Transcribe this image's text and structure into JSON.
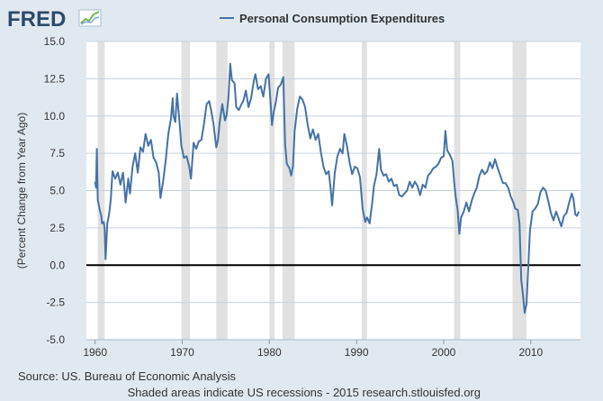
{
  "header": {
    "logo_text": "FRED",
    "logo_icon": "line-chart-icon"
  },
  "legend": {
    "series_name": "Personal Consumption Expenditures",
    "color": "#4572a7"
  },
  "footer": {
    "source": "Source: US. Bureau of Economic Analysis",
    "note": "Shaded areas indicate US recessions - 2015 research.stlouisfed.org"
  },
  "colors": {
    "background": "#e1e9f0",
    "plot_background": "#ffffff",
    "series": "#4572a7",
    "recession": "#e1e1e1",
    "grid": "#c8d2dc",
    "zero_line": "#000000",
    "text": "#333333"
  },
  "chart_data": {
    "type": "line",
    "title": "",
    "xlabel": "",
    "ylabel": "(Percent Change from Year Ago)",
    "xlim": [
      1959.0,
      2015.7
    ],
    "ylim": [
      -5.0,
      15.0
    ],
    "grid": true,
    "legend_position": "top",
    "x_ticks": [
      {
        "value": 1960,
        "label": "1960"
      },
      {
        "value": 1970,
        "label": "1970"
      },
      {
        "value": 1980,
        "label": "1980"
      },
      {
        "value": 1990,
        "label": "1990"
      },
      {
        "value": 2000,
        "label": "2000"
      },
      {
        "value": 2010,
        "label": "2010"
      }
    ],
    "y_ticks": [
      {
        "value": -5.0,
        "label": "-5.0"
      },
      {
        "value": -2.5,
        "label": "-2.5"
      },
      {
        "value": 0.0,
        "label": "0.0"
      },
      {
        "value": 2.5,
        "label": "2.5"
      },
      {
        "value": 5.0,
        "label": "5.0"
      },
      {
        "value": 7.5,
        "label": "7.5"
      },
      {
        "value": 10.0,
        "label": "10.0"
      },
      {
        "value": 12.5,
        "label": "12.5"
      },
      {
        "value": 15.0,
        "label": "15.0"
      }
    ],
    "recessions": [
      [
        1960.3,
        1961.1
      ],
      [
        1969.9,
        1970.9
      ],
      [
        1973.9,
        1975.2
      ],
      [
        1980.0,
        1980.6
      ],
      [
        1981.5,
        1982.9
      ],
      [
        1990.6,
        1991.2
      ],
      [
        2001.2,
        2001.9
      ],
      [
        2007.9,
        2009.5
      ]
    ],
    "series": [
      {
        "name": "Personal Consumption Expenditures",
        "color": "#4572a7",
        "points": [
          [
            1960.0,
            5.6
          ],
          [
            1960.1,
            5.2
          ],
          [
            1960.2,
            7.8
          ],
          [
            1960.3,
            4.4
          ],
          [
            1960.5,
            3.8
          ],
          [
            1960.7,
            3.3
          ],
          [
            1960.8,
            2.8
          ],
          [
            1961.0,
            2.9
          ],
          [
            1961.1,
            2.4
          ],
          [
            1961.2,
            0.4
          ],
          [
            1961.4,
            2.8
          ],
          [
            1961.6,
            3.4
          ],
          [
            1961.8,
            4.4
          ],
          [
            1962.0,
            6.3
          ],
          [
            1962.3,
            5.8
          ],
          [
            1962.6,
            6.2
          ],
          [
            1962.9,
            5.4
          ],
          [
            1963.2,
            6.2
          ],
          [
            1963.5,
            4.2
          ],
          [
            1963.8,
            5.8
          ],
          [
            1964.0,
            4.8
          ],
          [
            1964.3,
            6.6
          ],
          [
            1964.6,
            7.5
          ],
          [
            1964.9,
            6.2
          ],
          [
            1965.2,
            7.9
          ],
          [
            1965.5,
            7.6
          ],
          [
            1965.8,
            8.8
          ],
          [
            1966.1,
            8.0
          ],
          [
            1966.4,
            8.4
          ],
          [
            1966.7,
            7.2
          ],
          [
            1967.0,
            6.9
          ],
          [
            1967.3,
            6.2
          ],
          [
            1967.5,
            4.5
          ],
          [
            1967.8,
            5.6
          ],
          [
            1968.1,
            7.0
          ],
          [
            1968.4,
            8.8
          ],
          [
            1968.7,
            9.8
          ],
          [
            1968.9,
            11.2
          ],
          [
            1969.0,
            10.0
          ],
          [
            1969.2,
            9.6
          ],
          [
            1969.4,
            11.5
          ],
          [
            1969.7,
            9.5
          ],
          [
            1969.9,
            8.0
          ],
          [
            1970.2,
            7.2
          ],
          [
            1970.5,
            7.3
          ],
          [
            1970.8,
            6.6
          ],
          [
            1971.0,
            5.8
          ],
          [
            1971.3,
            8.2
          ],
          [
            1971.6,
            7.8
          ],
          [
            1971.9,
            8.3
          ],
          [
            1972.2,
            8.4
          ],
          [
            1972.5,
            9.5
          ],
          [
            1972.8,
            10.8
          ],
          [
            1973.1,
            11.0
          ],
          [
            1973.3,
            10.4
          ],
          [
            1973.6,
            9.4
          ],
          [
            1973.9,
            7.9
          ],
          [
            1974.1,
            8.4
          ],
          [
            1974.3,
            9.6
          ],
          [
            1974.6,
            10.8
          ],
          [
            1974.9,
            9.7
          ],
          [
            1975.1,
            10.1
          ],
          [
            1975.3,
            11.2
          ],
          [
            1975.5,
            13.5
          ],
          [
            1975.7,
            12.4
          ],
          [
            1976.0,
            12.2
          ],
          [
            1976.2,
            10.6
          ],
          [
            1976.5,
            10.4
          ],
          [
            1976.8,
            10.8
          ],
          [
            1977.0,
            11.0
          ],
          [
            1977.3,
            11.7
          ],
          [
            1977.6,
            10.6
          ],
          [
            1977.9,
            11.2
          ],
          [
            1978.2,
            12.3
          ],
          [
            1978.4,
            12.8
          ],
          [
            1978.7,
            11.8
          ],
          [
            1979.0,
            12.0
          ],
          [
            1979.3,
            11.3
          ],
          [
            1979.6,
            12.5
          ],
          [
            1979.9,
            12.8
          ],
          [
            1980.1,
            11.2
          ],
          [
            1980.3,
            9.4
          ],
          [
            1980.5,
            10.3
          ],
          [
            1980.7,
            10.8
          ],
          [
            1981.0,
            11.9
          ],
          [
            1981.3,
            12.1
          ],
          [
            1981.6,
            12.6
          ],
          [
            1981.8,
            8.1
          ],
          [
            1982.0,
            6.8
          ],
          [
            1982.3,
            6.5
          ],
          [
            1982.5,
            6.0
          ],
          [
            1982.7,
            6.6
          ],
          [
            1982.9,
            9.0
          ],
          [
            1983.2,
            10.5
          ],
          [
            1983.5,
            11.3
          ],
          [
            1983.8,
            11.1
          ],
          [
            1984.1,
            10.6
          ],
          [
            1984.4,
            9.4
          ],
          [
            1984.7,
            8.5
          ],
          [
            1985.0,
            9.1
          ],
          [
            1985.3,
            8.4
          ],
          [
            1985.6,
            8.8
          ],
          [
            1985.9,
            7.6
          ],
          [
            1986.2,
            6.6
          ],
          [
            1986.5,
            6.1
          ],
          [
            1986.8,
            6.3
          ],
          [
            1987.0,
            5.3
          ],
          [
            1987.2,
            4.0
          ],
          [
            1987.5,
            6.2
          ],
          [
            1987.8,
            7.3
          ],
          [
            1988.1,
            7.8
          ],
          [
            1988.4,
            7.5
          ],
          [
            1988.6,
            8.8
          ],
          [
            1988.9,
            8.0
          ],
          [
            1989.2,
            6.9
          ],
          [
            1989.5,
            6.1
          ],
          [
            1989.8,
            6.6
          ],
          [
            1990.1,
            6.5
          ],
          [
            1990.4,
            5.9
          ],
          [
            1990.7,
            3.8
          ],
          [
            1991.0,
            2.9
          ],
          [
            1991.2,
            3.2
          ],
          [
            1991.5,
            2.8
          ],
          [
            1991.8,
            4.2
          ],
          [
            1992.0,
            5.3
          ],
          [
            1992.3,
            6.1
          ],
          [
            1992.6,
            7.8
          ],
          [
            1992.8,
            6.4
          ],
          [
            1993.1,
            6.0
          ],
          [
            1993.4,
            6.1
          ],
          [
            1993.7,
            5.6
          ],
          [
            1994.0,
            5.8
          ],
          [
            1994.3,
            5.3
          ],
          [
            1994.6,
            5.4
          ],
          [
            1994.9,
            4.7
          ],
          [
            1995.2,
            4.6
          ],
          [
            1995.5,
            4.8
          ],
          [
            1995.8,
            5.0
          ],
          [
            1996.1,
            5.6
          ],
          [
            1996.4,
            5.2
          ],
          [
            1996.7,
            5.6
          ],
          [
            1997.0,
            5.3
          ],
          [
            1997.3,
            4.7
          ],
          [
            1997.6,
            5.4
          ],
          [
            1997.9,
            5.2
          ],
          [
            1998.2,
            6.0
          ],
          [
            1998.5,
            6.2
          ],
          [
            1998.8,
            6.5
          ],
          [
            1999.1,
            6.6
          ],
          [
            1999.4,
            6.8
          ],
          [
            1999.7,
            7.2
          ],
          [
            2000.0,
            7.3
          ],
          [
            2000.2,
            9.0
          ],
          [
            2000.4,
            7.7
          ],
          [
            2000.7,
            7.4
          ],
          [
            2001.0,
            7.0
          ],
          [
            2001.2,
            5.6
          ],
          [
            2001.4,
            4.5
          ],
          [
            2001.6,
            3.7
          ],
          [
            2001.8,
            2.1
          ],
          [
            2002.0,
            3.2
          ],
          [
            2002.3,
            3.6
          ],
          [
            2002.6,
            4.2
          ],
          [
            2002.9,
            3.6
          ],
          [
            2003.2,
            4.3
          ],
          [
            2003.5,
            4.8
          ],
          [
            2003.8,
            5.2
          ],
          [
            2004.1,
            6.0
          ],
          [
            2004.4,
            6.4
          ],
          [
            2004.7,
            6.1
          ],
          [
            2005.0,
            6.3
          ],
          [
            2005.3,
            6.9
          ],
          [
            2005.6,
            6.5
          ],
          [
            2005.9,
            7.1
          ],
          [
            2006.2,
            6.5
          ],
          [
            2006.5,
            6.0
          ],
          [
            2006.8,
            5.5
          ],
          [
            2007.1,
            5.5
          ],
          [
            2007.4,
            5.2
          ],
          [
            2007.7,
            4.6
          ],
          [
            2008.0,
            4.2
          ],
          [
            2008.2,
            3.8
          ],
          [
            2008.5,
            3.7
          ],
          [
            2008.7,
            2.8
          ],
          [
            2008.9,
            -1.0
          ],
          [
            2009.1,
            -2.0
          ],
          [
            2009.3,
            -3.2
          ],
          [
            2009.5,
            -2.6
          ],
          [
            2009.7,
            -0.2
          ],
          [
            2009.9,
            2.3
          ],
          [
            2010.2,
            3.6
          ],
          [
            2010.5,
            3.8
          ],
          [
            2010.8,
            4.1
          ],
          [
            2011.1,
            4.9
          ],
          [
            2011.4,
            5.2
          ],
          [
            2011.7,
            5.0
          ],
          [
            2012.0,
            4.3
          ],
          [
            2012.3,
            3.5
          ],
          [
            2012.6,
            3.0
          ],
          [
            2012.9,
            3.6
          ],
          [
            2013.2,
            3.1
          ],
          [
            2013.5,
            2.6
          ],
          [
            2013.8,
            3.3
          ],
          [
            2014.1,
            3.5
          ],
          [
            2014.4,
            4.2
          ],
          [
            2014.7,
            4.8
          ],
          [
            2014.9,
            4.4
          ],
          [
            2015.1,
            3.4
          ],
          [
            2015.3,
            3.3
          ],
          [
            2015.5,
            3.6
          ]
        ]
      }
    ]
  }
}
